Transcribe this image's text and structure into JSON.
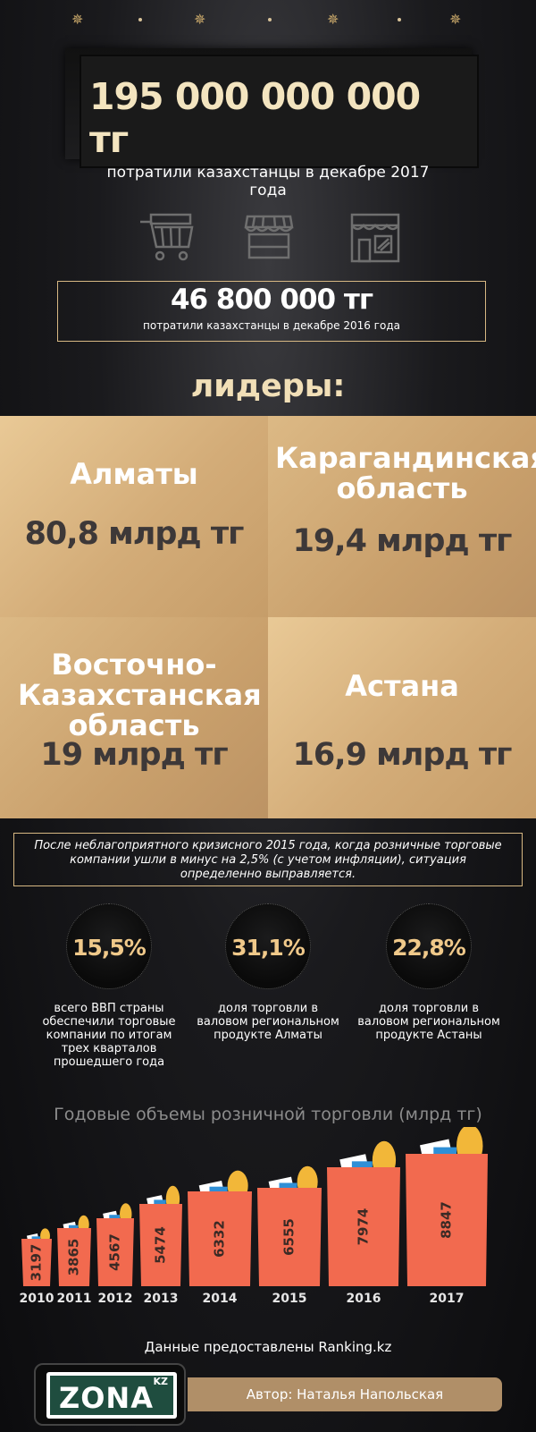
{
  "header": {
    "amount": "195 000 000 000 тг",
    "subtitle": "потратили казахстанцы в декабре 2017 года"
  },
  "icons": [
    "shopping-cart-icon",
    "market-stall-icon",
    "shop-front-icon"
  ],
  "previous": {
    "amount": "46 800 000 тг",
    "subtitle": "потратили казахстанцы в декабре 2016 года"
  },
  "leaders": {
    "title": "лидеры:",
    "items": [
      {
        "name": "Алматы",
        "value": "80,8 млрд тг"
      },
      {
        "name": "Карагандинская область",
        "value": "19,4 млрд тг"
      },
      {
        "name": "Восточно-Казахстанская область",
        "value": "19 млрд тг"
      },
      {
        "name": "Астана",
        "value": "16,9 млрд тг"
      }
    ]
  },
  "quote": "После неблагоприятного кризисного 2015 года, когда розничные торговые компании ушли в минус на 2,5% (с учетом инфляции), ситуация определенно выправляется.",
  "stats": [
    {
      "value": "15,5%",
      "desc": "всего ВВП страны обеспечили торговые компании по итогам трех кварталов прошедшего года"
    },
    {
      "value": "31,1%",
      "desc": "доля торговли в валовом региональном продукте Алматы"
    },
    {
      "value": "22,8%",
      "desc": "доля торговли в валовом региональном продукте Астаны"
    }
  ],
  "chart_data": {
    "type": "bar",
    "title": "Годовые объемы розничной торговли (млрд тг)",
    "categories": [
      "2010",
      "2011",
      "2012",
      "2013",
      "2014",
      "2015",
      "2016",
      "2017"
    ],
    "values": [
      3197,
      3865,
      4567,
      5474,
      6332,
      6555,
      7974,
      8847
    ],
    "colors": {
      "bag": "#f26a4f",
      "bread": "#f2b739",
      "paper": "#ffffff",
      "blue": "#2f8fd6"
    }
  },
  "footer": {
    "credit": "Данные предоставлены Ranking.kz",
    "logo": "ZONA",
    "logo_suffix": "KZ",
    "author": "Автор: Наталья Напольская"
  },
  "colors": {
    "gold": "#d7b883",
    "accent": "#f0c98a"
  }
}
